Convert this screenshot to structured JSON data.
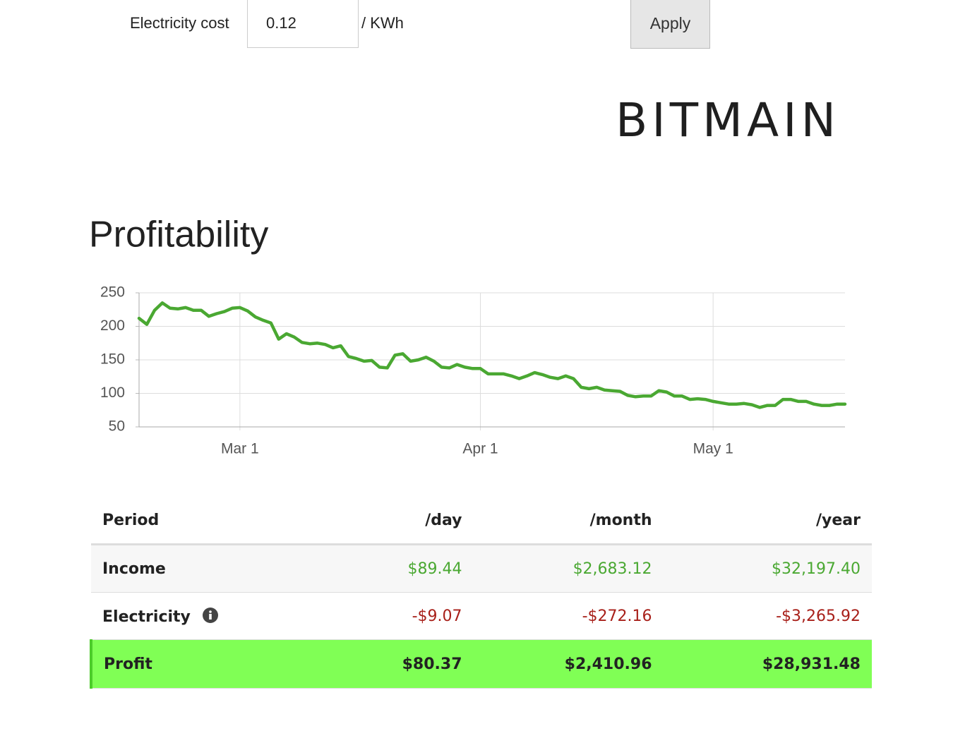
{
  "form": {
    "label": "Electricity cost",
    "value": "0.12",
    "unit": "/ KWh",
    "button": "Apply"
  },
  "logo": "BITMAIN",
  "chart_data": {
    "type": "line",
    "title": "Profitability",
    "categories": [
      null,
      null,
      null,
      null,
      null,
      null,
      null,
      null,
      null,
      null,
      null,
      null,
      null,
      "Mar 1",
      null,
      null,
      null,
      null,
      null,
      null,
      null,
      null,
      null,
      null,
      null,
      null,
      null,
      null,
      null,
      null,
      null,
      null,
      null,
      null,
      null,
      null,
      null,
      null,
      null,
      null,
      null,
      null,
      null,
      null,
      "Apr 1",
      null,
      null,
      null,
      null,
      null,
      null,
      null,
      null,
      null,
      null,
      null,
      null,
      null,
      null,
      null,
      null,
      null,
      null,
      null,
      null,
      null,
      null,
      null,
      null,
      null,
      null,
      null,
      null,
      null,
      "May 1",
      null,
      null,
      null,
      null,
      null,
      null,
      null,
      null,
      null,
      null,
      null,
      null,
      null,
      null,
      null,
      null,
      null
    ],
    "values": [
      212,
      203,
      224,
      235,
      227,
      226,
      228,
      224,
      224,
      215,
      219,
      222,
      227,
      228,
      223,
      214,
      209,
      205,
      181,
      189,
      184,
      176,
      174,
      175,
      173,
      168,
      171,
      155,
      152,
      148,
      149,
      139,
      138,
      157,
      159,
      148,
      150,
      154,
      148,
      139,
      138,
      143,
      139,
      137,
      137,
      129,
      129,
      129,
      126,
      122,
      126,
      131,
      128,
      124,
      122,
      126,
      122,
      109,
      107,
      109,
      105,
      104,
      103,
      97,
      95,
      96,
      96,
      104,
      102,
      96,
      96,
      91,
      92,
      91,
      88,
      86,
      84,
      84,
      85,
      83,
      79,
      82,
      82,
      91,
      91,
      88,
      88,
      84,
      82,
      82,
      84,
      84
    ],
    "color": "#4aa832",
    "ylim": [
      50,
      250
    ],
    "yticks": [
      50,
      100,
      150,
      200,
      250
    ],
    "grid": true
  },
  "table": {
    "header": [
      "Period",
      "/day",
      "/month",
      "/year"
    ],
    "rows": [
      [
        "Income",
        "$89.44",
        "$2,683.12",
        "$32,197.40"
      ],
      [
        "Electricity",
        "-$9.07",
        "-$272.16",
        "-$3,265.92"
      ],
      [
        "Profit",
        "$80.37",
        "$2,410.96",
        "$28,931.48"
      ]
    ]
  }
}
